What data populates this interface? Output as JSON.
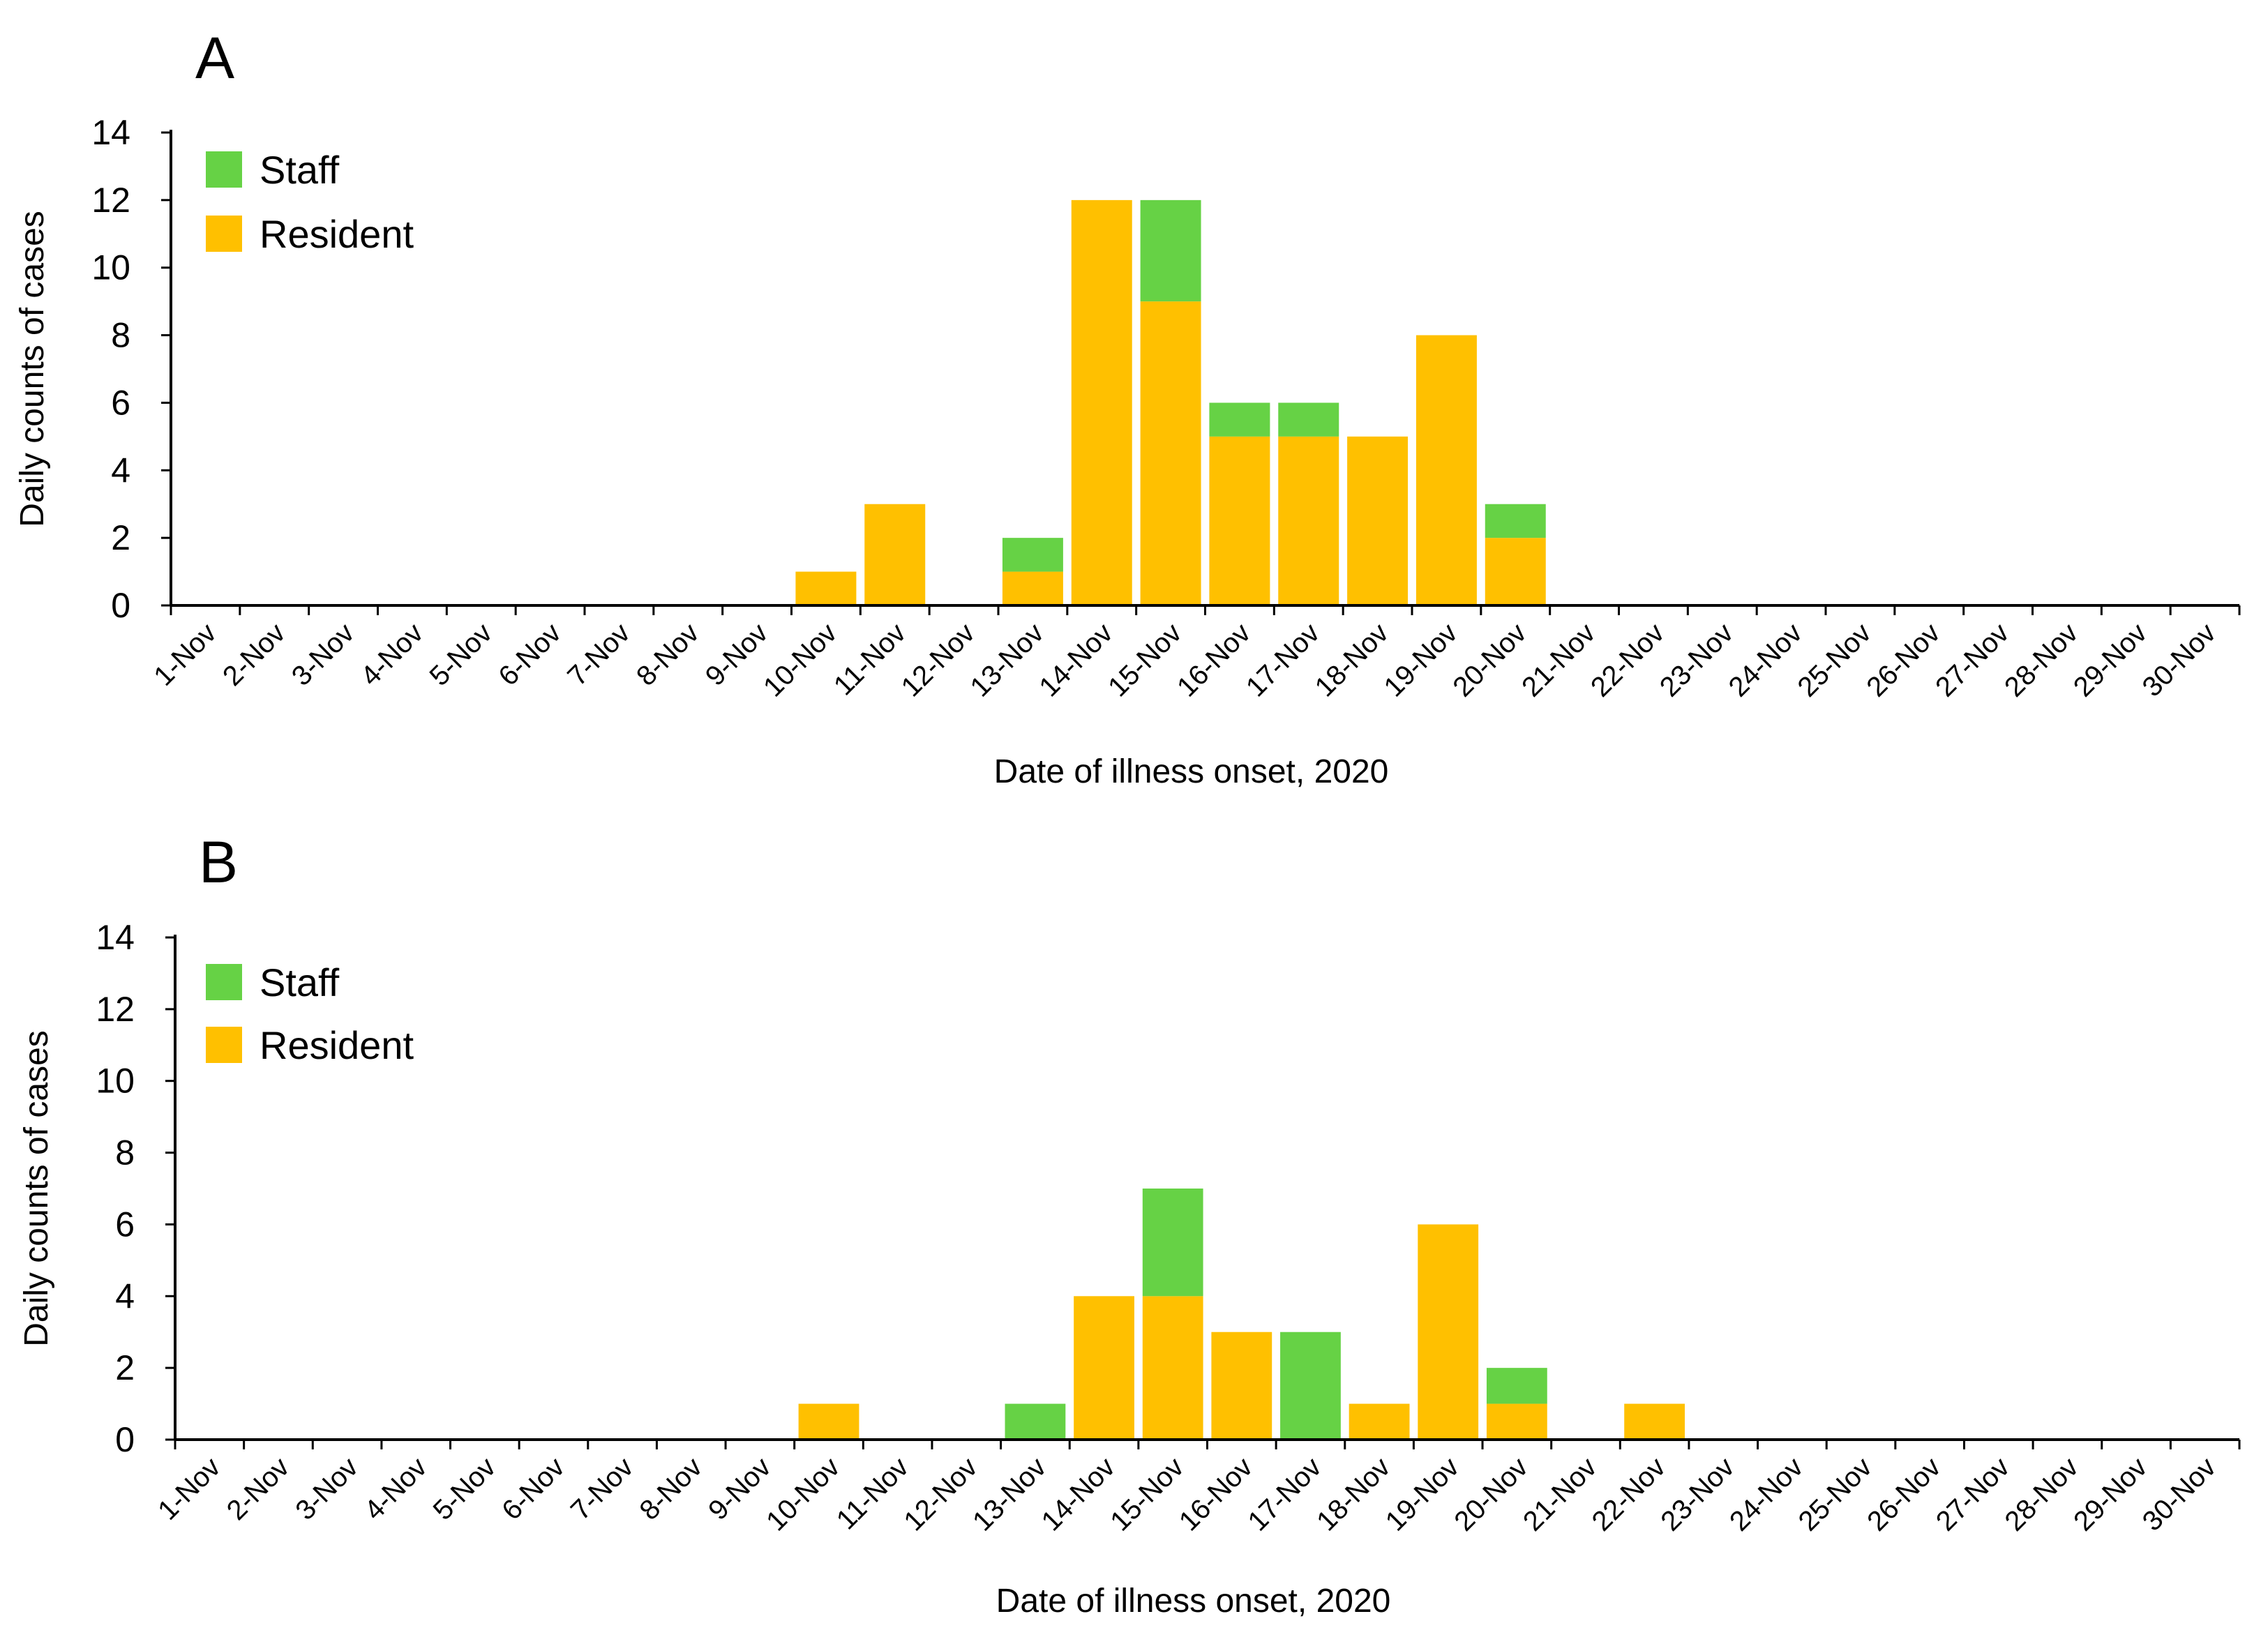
{
  "colors": {
    "staff": "#66D245",
    "resident": "#FFC000",
    "axis": "#000000"
  },
  "chart_data": [
    {
      "type": "bar",
      "stacked": true,
      "panel_label": "A",
      "title": "",
      "xlabel": "Date of illness onset, 2020",
      "ylabel": "Daily counts of cases",
      "ylim": [
        0,
        14
      ],
      "yticks": [
        0,
        2,
        4,
        6,
        8,
        10,
        12,
        14
      ],
      "legend_position": "top-left",
      "categories": [
        "1-Nov",
        "2-Nov",
        "3-Nov",
        "4-Nov",
        "5-Nov",
        "6-Nov",
        "7-Nov",
        "8-Nov",
        "9-Nov",
        "10-Nov",
        "11-Nov",
        "12-Nov",
        "13-Nov",
        "14-Nov",
        "15-Nov",
        "16-Nov",
        "17-Nov",
        "18-Nov",
        "19-Nov",
        "20-Nov",
        "21-Nov",
        "22-Nov",
        "23-Nov",
        "24-Nov",
        "25-Nov",
        "26-Nov",
        "27-Nov",
        "28-Nov",
        "29-Nov",
        "30-Nov"
      ],
      "series": [
        {
          "name": "Resident",
          "values": [
            0,
            0,
            0,
            0,
            0,
            0,
            0,
            0,
            0,
            1,
            3,
            0,
            1,
            12,
            9,
            5,
            5,
            5,
            8,
            2,
            0,
            0,
            0,
            0,
            0,
            0,
            0,
            0,
            0,
            0
          ]
        },
        {
          "name": "Staff",
          "values": [
            0,
            0,
            0,
            0,
            0,
            0,
            0,
            0,
            0,
            0,
            0,
            0,
            1,
            0,
            3,
            1,
            1,
            0,
            0,
            1,
            0,
            0,
            0,
            0,
            0,
            0,
            0,
            0,
            0,
            0
          ]
        }
      ],
      "legend": [
        "Staff",
        "Resident"
      ]
    },
    {
      "type": "bar",
      "stacked": true,
      "panel_label": "B",
      "title": "",
      "xlabel": "Date of illness onset, 2020",
      "ylabel": "Daily counts of cases",
      "ylim": [
        0,
        14
      ],
      "yticks": [
        0,
        2,
        4,
        6,
        8,
        10,
        12,
        14
      ],
      "legend_position": "top-left",
      "categories": [
        "1-Nov",
        "2-Nov",
        "3-Nov",
        "4-Nov",
        "5-Nov",
        "6-Nov",
        "7-Nov",
        "8-Nov",
        "9-Nov",
        "10-Nov",
        "11-Nov",
        "12-Nov",
        "13-Nov",
        "14-Nov",
        "15-Nov",
        "16-Nov",
        "17-Nov",
        "18-Nov",
        "19-Nov",
        "20-Nov",
        "21-Nov",
        "22-Nov",
        "23-Nov",
        "24-Nov",
        "25-Nov",
        "26-Nov",
        "27-Nov",
        "28-Nov",
        "29-Nov",
        "30-Nov"
      ],
      "series": [
        {
          "name": "Resident",
          "values": [
            0,
            0,
            0,
            0,
            0,
            0,
            0,
            0,
            0,
            1,
            0,
            0,
            0,
            4,
            4,
            3,
            0,
            1,
            6,
            1,
            0,
            1,
            0,
            0,
            0,
            0,
            0,
            0,
            0,
            0
          ]
        },
        {
          "name": "Staff",
          "values": [
            0,
            0,
            0,
            0,
            0,
            0,
            0,
            0,
            0,
            0,
            0,
            0,
            1,
            0,
            3,
            0,
            3,
            0,
            0,
            1,
            0,
            0,
            0,
            0,
            0,
            0,
            0,
            0,
            0,
            0
          ]
        }
      ],
      "legend": [
        "Staff",
        "Resident"
      ]
    }
  ]
}
